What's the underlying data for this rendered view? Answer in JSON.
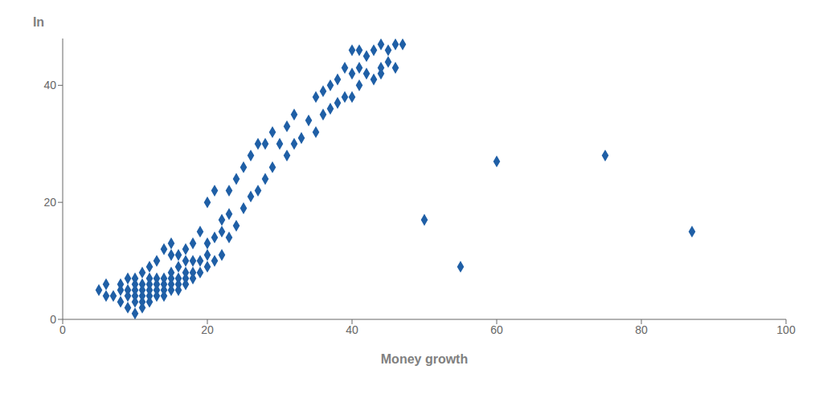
{
  "chart_data": {
    "type": "scatter",
    "x": [
      5,
      6,
      6,
      7,
      8,
      8,
      8,
      9,
      9,
      9,
      9,
      10,
      10,
      10,
      10,
      10,
      10,
      11,
      11,
      11,
      11,
      11,
      11,
      12,
      12,
      12,
      12,
      12,
      12,
      13,
      13,
      13,
      13,
      13,
      14,
      14,
      14,
      14,
      14,
      15,
      15,
      15,
      15,
      15,
      15,
      16,
      16,
      16,
      16,
      16,
      17,
      17,
      17,
      17,
      17,
      18,
      18,
      18,
      18,
      19,
      19,
      19,
      20,
      20,
      20,
      20,
      21,
      21,
      21,
      22,
      22,
      22,
      23,
      23,
      23,
      24,
      24,
      25,
      25,
      26,
      26,
      27,
      27,
      28,
      28,
      29,
      29,
      30,
      31,
      31,
      32,
      32,
      33,
      34,
      35,
      35,
      36,
      36,
      37,
      37,
      38,
      38,
      39,
      39,
      40,
      40,
      40,
      41,
      41,
      41,
      42,
      42,
      43,
      43,
      44,
      44,
      44,
      45,
      45,
      46,
      46,
      47,
      50,
      55,
      60,
      75,
      87
    ],
    "values": [
      5,
      4,
      6,
      4,
      3,
      5,
      6,
      2,
      4,
      5,
      7,
      1,
      3,
      4,
      5,
      6,
      7,
      2,
      3,
      4,
      5,
      6,
      8,
      3,
      4,
      5,
      6,
      7,
      9,
      4,
      5,
      6,
      7,
      10,
      4,
      5,
      6,
      7,
      12,
      5,
      6,
      7,
      8,
      11,
      13,
      5,
      6,
      7,
      9,
      11,
      6,
      7,
      8,
      10,
      12,
      7,
      8,
      10,
      13,
      8,
      10,
      15,
      9,
      11,
      13,
      20,
      10,
      14,
      22,
      11,
      15,
      17,
      14,
      18,
      22,
      16,
      24,
      19,
      26,
      21,
      28,
      22,
      30,
      24,
      30,
      26,
      32,
      30,
      28,
      33,
      30,
      35,
      31,
      34,
      32,
      38,
      35,
      39,
      36,
      40,
      37,
      41,
      38,
      43,
      38,
      42,
      46,
      40,
      43,
      46,
      42,
      45,
      41,
      46,
      42,
      43,
      47,
      44,
      46,
      43,
      47,
      47,
      17,
      9,
      27,
      28,
      15
    ],
    "color": "#1f5fa6",
    "marker": "diamond",
    "xlabel": "Money growth",
    "ylabel": "In",
    "xlim": [
      0,
      100
    ],
    "ylim": [
      0,
      48
    ],
    "xticks": [
      0,
      20,
      40,
      60,
      80,
      100
    ],
    "yticks": [
      0,
      20,
      40
    ],
    "grid": false
  }
}
